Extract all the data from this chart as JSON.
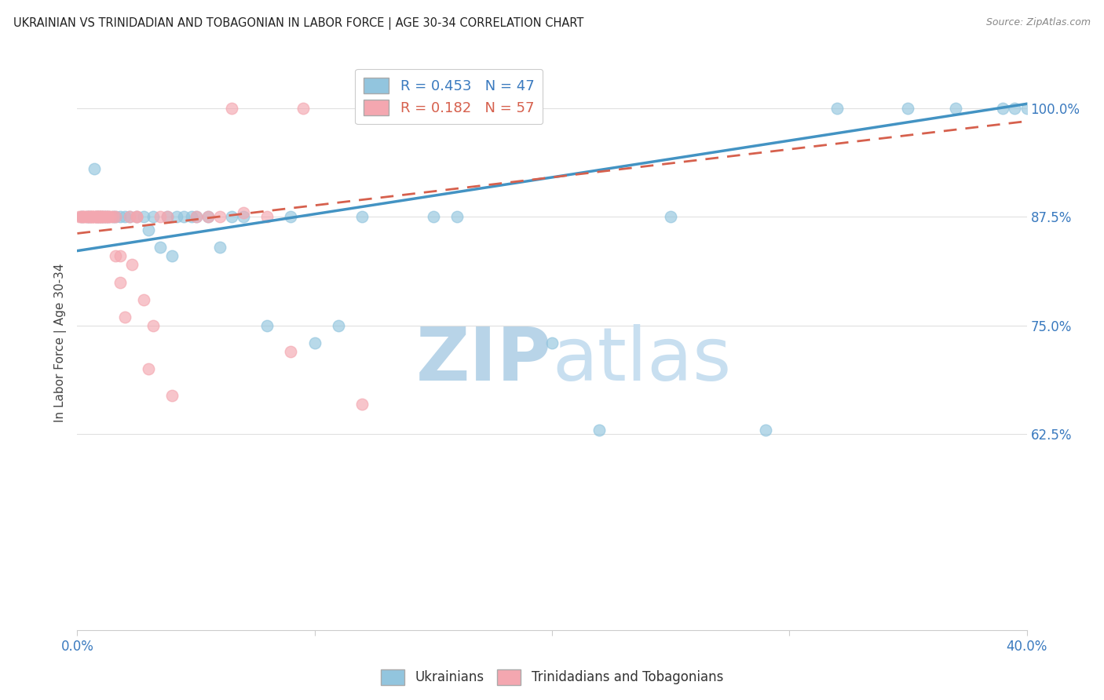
{
  "title": "UKRAINIAN VS TRINIDADIAN AND TOBAGONIAN IN LABOR FORCE | AGE 30-34 CORRELATION CHART",
  "source": "Source: ZipAtlas.com",
  "ylabel": "In Labor Force | Age 30-34",
  "yticks": [
    "100.0%",
    "87.5%",
    "75.0%",
    "62.5%"
  ],
  "ytick_vals": [
    1.0,
    0.875,
    0.75,
    0.625
  ],
  "xlim": [
    0.0,
    0.4
  ],
  "ylim": [
    0.4,
    1.06
  ],
  "blue_color": "#92c5de",
  "pink_color": "#f4a7b0",
  "blue_line_color": "#4393c3",
  "pink_line_color": "#d6604d",
  "R_blue": 0.453,
  "N_blue": 47,
  "R_pink": 0.182,
  "N_pink": 57,
  "blue_x": [
    0.002,
    0.004,
    0.005,
    0.007,
    0.008,
    0.009,
    0.01,
    0.011,
    0.012,
    0.013,
    0.015,
    0.016,
    0.018,
    0.02,
    0.022,
    0.025,
    0.028,
    0.03,
    0.032,
    0.035,
    0.038,
    0.04,
    0.042,
    0.045,
    0.048,
    0.05,
    0.055,
    0.06,
    0.065,
    0.07,
    0.08,
    0.09,
    0.1,
    0.11,
    0.12,
    0.15,
    0.16,
    0.2,
    0.22,
    0.25,
    0.29,
    0.32,
    0.35,
    0.37,
    0.39,
    0.395,
    0.4
  ],
  "blue_y": [
    0.875,
    0.875,
    0.875,
    0.93,
    0.875,
    0.875,
    0.875,
    0.875,
    0.875,
    0.875,
    0.875,
    0.875,
    0.875,
    0.875,
    0.875,
    0.875,
    0.875,
    0.86,
    0.875,
    0.84,
    0.875,
    0.83,
    0.875,
    0.875,
    0.875,
    0.875,
    0.875,
    0.84,
    0.875,
    0.875,
    0.75,
    0.875,
    0.73,
    0.75,
    0.875,
    0.875,
    0.875,
    0.73,
    0.63,
    0.875,
    0.63,
    1.0,
    1.0,
    1.0,
    1.0,
    1.0,
    1.0
  ],
  "pink_x": [
    0.001,
    0.002,
    0.002,
    0.003,
    0.003,
    0.004,
    0.004,
    0.005,
    0.005,
    0.006,
    0.006,
    0.006,
    0.007,
    0.007,
    0.008,
    0.008,
    0.008,
    0.009,
    0.009,
    0.009,
    0.01,
    0.01,
    0.01,
    0.011,
    0.011,
    0.012,
    0.012,
    0.013,
    0.013,
    0.014,
    0.015,
    0.016,
    0.016,
    0.018,
    0.018,
    0.02,
    0.022,
    0.023,
    0.025,
    0.025,
    0.028,
    0.03,
    0.032,
    0.035,
    0.038,
    0.04,
    0.05,
    0.055,
    0.06,
    0.065,
    0.07,
    0.08,
    0.09,
    0.095,
    0.12,
    0.17,
    0.19
  ],
  "pink_y": [
    0.875,
    0.875,
    0.875,
    0.875,
    0.875,
    0.875,
    0.875,
    0.875,
    0.875,
    0.875,
    0.875,
    0.875,
    0.875,
    0.875,
    0.875,
    0.875,
    0.875,
    0.875,
    0.875,
    0.875,
    0.875,
    0.875,
    0.875,
    0.875,
    0.875,
    0.875,
    0.875,
    0.875,
    0.875,
    0.875,
    0.875,
    0.875,
    0.83,
    0.8,
    0.83,
    0.76,
    0.875,
    0.82,
    0.875,
    0.875,
    0.78,
    0.7,
    0.75,
    0.875,
    0.875,
    0.67,
    0.875,
    0.875,
    0.875,
    1.0,
    0.88,
    0.875,
    0.72,
    1.0,
    0.66,
    1.0,
    1.0
  ],
  "grid_color": "#e0e0e0",
  "watermark_color": "#dce9f5",
  "background_color": "#ffffff",
  "blue_line_x0": 0.0,
  "blue_line_y0": 0.836,
  "blue_line_x1": 0.4,
  "blue_line_y1": 1.005,
  "pink_line_x0": 0.0,
  "pink_line_y0": 0.856,
  "pink_line_x1": 0.4,
  "pink_line_y1": 0.985
}
